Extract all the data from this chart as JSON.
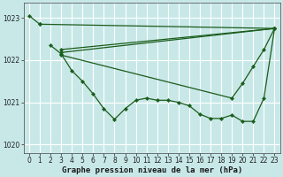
{
  "xlabel": "Graphe pression niveau de la mer (hPa)",
  "ylim": [
    1019.8,
    1023.35
  ],
  "xlim": [
    -0.5,
    23.5
  ],
  "yticks": [
    1020,
    1021,
    1022,
    1023
  ],
  "xticks": [
    0,
    1,
    2,
    3,
    4,
    5,
    6,
    7,
    8,
    9,
    10,
    11,
    12,
    13,
    14,
    15,
    16,
    17,
    18,
    19,
    20,
    21,
    22,
    23
  ],
  "bg_color": "#c8e8e8",
  "grid_color": "#aacccc",
  "line_color": "#1a5c1a",
  "series": [
    {
      "x": [
        0,
        1
      ],
      "y": [
        1023.05,
        1022.85
      ]
    },
    {
      "x": [
        1,
        23
      ],
      "y": [
        1022.85,
        1022.75
      ]
    },
    {
      "x": [
        3,
        23
      ],
      "y": [
        1022.25,
        1022.75
      ]
    },
    {
      "x": [
        3,
        23
      ],
      "y": [
        1022.18,
        1022.75
      ]
    },
    {
      "x": [
        3,
        19,
        20,
        21,
        22,
        23
      ],
      "y": [
        1022.12,
        1021.1,
        1021.45,
        1021.85,
        1022.25,
        1022.75
      ]
    },
    {
      "x": [
        2,
        3,
        4,
        5,
        6,
        7,
        8,
        9,
        10,
        11,
        12,
        13,
        14,
        15,
        16,
        17,
        18,
        19,
        20,
        21,
        22,
        23
      ],
      "y": [
        1022.35,
        1022.15,
        1021.75,
        1021.5,
        1021.2,
        1020.85,
        1020.6,
        1020.85,
        1021.05,
        1021.1,
        1021.05,
        1021.05,
        1021.0,
        1020.92,
        1020.72,
        1020.62,
        1020.62,
        1020.7,
        1020.55,
        1020.55,
        1021.1,
        1022.75
      ]
    }
  ],
  "marker": "D",
  "markersize": 2.2,
  "linewidth": 0.9,
  "tick_fontsize": 5.5,
  "label_fontsize": 6.5,
  "label_fontweight": "bold"
}
